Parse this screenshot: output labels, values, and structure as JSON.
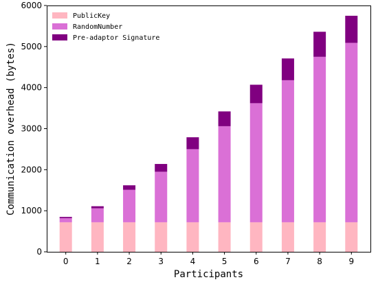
{
  "chart_data": {
    "type": "bar",
    "stacked": true,
    "categories": [
      "0",
      "1",
      "2",
      "3",
      "4",
      "5",
      "6",
      "7",
      "8",
      "9"
    ],
    "series": [
      {
        "name": "PublicKey",
        "color": "#FFB6C1",
        "values": [
          720,
          720,
          720,
          720,
          720,
          720,
          720,
          720,
          720,
          720
        ]
      },
      {
        "name": "RandomNumber",
        "color": "#DA70D6",
        "values": [
          100,
          340,
          790,
          1230,
          1780,
          2340,
          2900,
          3460,
          4030,
          4370
        ]
      },
      {
        "name": "Pre-adaptor Signature",
        "color": "#800080",
        "values": [
          30,
          50,
          110,
          190,
          290,
          360,
          450,
          530,
          610,
          660
        ]
      }
    ],
    "xlabel": "Participants",
    "ylabel": "Communication overhead (bytes)",
    "ylim": [
      0,
      6000
    ],
    "yticks": [
      0,
      1000,
      2000,
      3000,
      4000,
      5000,
      6000
    ],
    "legend": "top-left",
    "grid": false
  }
}
